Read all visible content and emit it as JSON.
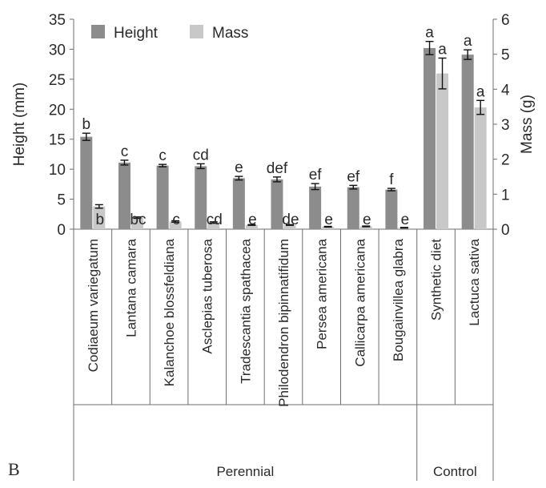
{
  "panel_letter": "B",
  "chart_data": {
    "type": "bar",
    "categories": [
      "Codiaeum variegatum",
      "Lantana camara",
      "Kalanchoe blossfeldiana",
      "Asclepias tuberosa",
      "Tradescantia spathacea",
      "Philodendron bipinnatifidum",
      "Persea americana",
      "Callicarpa americana",
      "Bougainvillea glabra",
      "Synthetic diet",
      "Lactuca sativa"
    ],
    "groups": [
      {
        "label": "Perennial",
        "start": 0,
        "end": 8
      },
      {
        "label": "Control",
        "start": 9,
        "end": 10
      }
    ],
    "series": [
      {
        "name": "Height",
        "axis": "left",
        "color": "#8c8c8c",
        "values": [
          15.4,
          11.1,
          10.6,
          10.5,
          8.5,
          8.3,
          7.1,
          7.0,
          6.6,
          30.2,
          29.1
        ],
        "errors": [
          0.6,
          0.4,
          0.2,
          0.4,
          0.3,
          0.4,
          0.5,
          0.3,
          0.2,
          1.1,
          0.8
        ],
        "letters": [
          "b",
          "c",
          "c",
          "cd",
          "e",
          "def",
          "ef",
          "ef",
          "f",
          "a",
          "a"
        ]
      },
      {
        "name": "Mass",
        "axis": "right",
        "color": "#c8c8c8",
        "values": [
          0.65,
          0.33,
          0.22,
          0.19,
          0.12,
          0.12,
          0.07,
          0.08,
          0.04,
          4.45,
          3.48
        ],
        "errors": [
          0.05,
          0.02,
          0.02,
          0.02,
          0.01,
          0.01,
          0.01,
          0.01,
          0.01,
          0.44,
          0.2
        ],
        "letters": [
          "b",
          "bc",
          "c",
          "cd",
          "e",
          "de",
          "e",
          "e",
          "e",
          "a",
          "a"
        ]
      }
    ],
    "ylabel_left": "Height (mm)",
    "ylabel_right": "Mass (g)",
    "ylim_left": [
      0,
      35
    ],
    "yticks_left": [
      0,
      5,
      10,
      15,
      20,
      25,
      30,
      35
    ],
    "ylim_right": [
      0,
      6
    ],
    "yticks_right": [
      0,
      1,
      2,
      3,
      4,
      5,
      6
    ],
    "legend_position": "top-left",
    "grid": false
  }
}
